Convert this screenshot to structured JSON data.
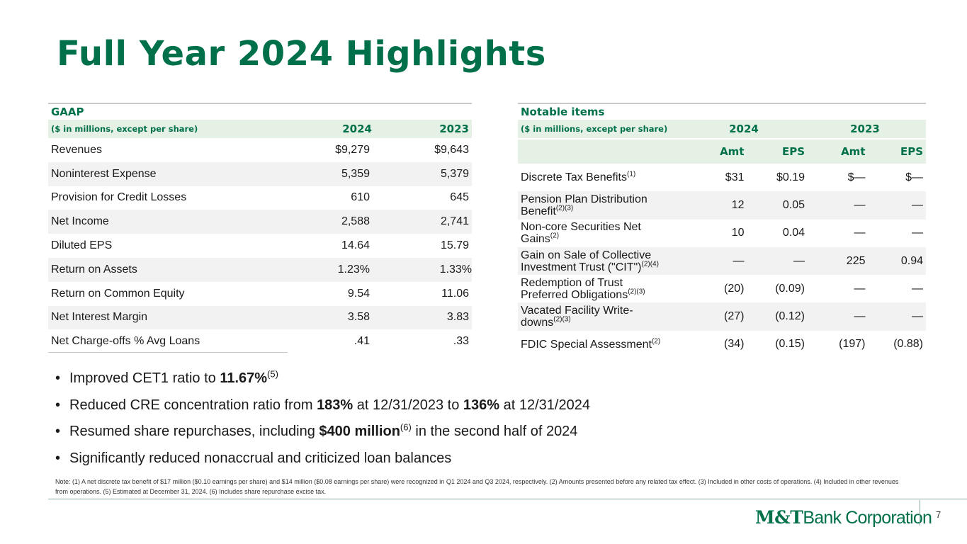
{
  "title": "Full Year 2024 Highlights",
  "gaap": {
    "section": "GAAP",
    "header_label": "($ in millions, except per share)",
    "year1": "2024",
    "year2": "2023",
    "rows": [
      {
        "label": "Revenues",
        "v2024": "$9,279",
        "v2023": "$9,643"
      },
      {
        "label": "Noninterest Expense",
        "v2024": "5,359",
        "v2023": "5,379"
      },
      {
        "label": "Provision for Credit Losses",
        "v2024": "610",
        "v2023": "645"
      },
      {
        "label": "Net Income",
        "v2024": "2,588",
        "v2023": "2,741"
      },
      {
        "label": "Diluted EPS",
        "v2024": "14.64",
        "v2023": "15.79"
      },
      {
        "label": "Return on Assets",
        "v2024": "1.23%",
        "v2023": "1.33%"
      },
      {
        "label": "Return on Common Equity",
        "v2024": "9.54",
        "v2023": "11.06"
      },
      {
        "label": "Net Interest Margin",
        "v2024": "3.58",
        "v2023": "3.83"
      },
      {
        "label": "Net Charge-offs % Avg Loans",
        "v2024": ".41",
        "v2023": ".33"
      }
    ]
  },
  "notable": {
    "section": "Notable items",
    "header_label": "($ in millions, except per share)",
    "year1": "2024",
    "year2": "2023",
    "sub_amt": "Amt",
    "sub_eps": "EPS",
    "rows": [
      {
        "l1": "Discrete Tax Benefits",
        "l2": "",
        "sup": "(1)",
        "a24": "$31",
        "e24": "$0.19",
        "a23": "$—",
        "e23": "$—"
      },
      {
        "l1": "Pension Plan Distribution",
        "l2": "Benefit",
        "sup": "(2)(3)",
        "a24": "12",
        "e24": "0.05",
        "a23": "—",
        "e23": "—"
      },
      {
        "l1": "Non-core Securities Net",
        "l2": "Gains",
        "sup": "(2)",
        "a24": "10",
        "e24": "0.04",
        "a23": "—",
        "e23": "—"
      },
      {
        "l1": "Gain on Sale of Collective",
        "l2": "Investment Trust (\"CIT\")",
        "sup": "(2)(4)",
        "a24": "—",
        "e24": "—",
        "a23": "225",
        "e23": "0.94"
      },
      {
        "l1": "Redemption of Trust",
        "l2": "Preferred Obligations",
        "sup": "(2)(3)",
        "a24": "(20)",
        "e24": "(0.09)",
        "a23": "—",
        "e23": "—"
      },
      {
        "l1": "Vacated Facility Write-",
        "l2": "downs",
        "sup": "(2)(3)",
        "a24": "(27)",
        "e24": "(0.12)",
        "a23": "—",
        "e23": "—"
      },
      {
        "l1": "FDIC Special Assessment",
        "l2": "",
        "sup": "(2)",
        "a24": "(34)",
        "e24": "(0.15)",
        "a23": "(197)",
        "e23": "(0.88)"
      }
    ]
  },
  "bullets": {
    "b1_pre": "Improved CET1 ratio to ",
    "b1_bold": "11.67%",
    "b1_sup": "(5)",
    "b2_pre": "Reduced CRE concentration ratio from ",
    "b2_bold1": "183%",
    "b2_mid": " at 12/31/2023 to ",
    "b2_bold2": "136%",
    "b2_post": " at 12/31/2024",
    "b3_pre": "Resumed share repurchases, including ",
    "b3_bold": "$400 million",
    "b3_sup": "(6)",
    "b3_post": " in the second half of 2024",
    "b4": "Significantly reduced nonaccrual and criticized loan balances"
  },
  "note": "Note: (1) A net discrete tax benefit of $17 million ($0.10 earnings per share) and $14 million ($0.08 earnings per share) were recognized in Q1 2024 and Q3 2024, respectively. (2) Amounts presented before any related tax effect. (3) Included in other costs of operations. (4) Included in other revenues from operations. (5) Estimated at December 31, 2024. (6) Includes share repurchase excise tax.",
  "logo": {
    "bold": "M&T",
    "rest": "Bank Corporation"
  },
  "page_number": "7"
}
